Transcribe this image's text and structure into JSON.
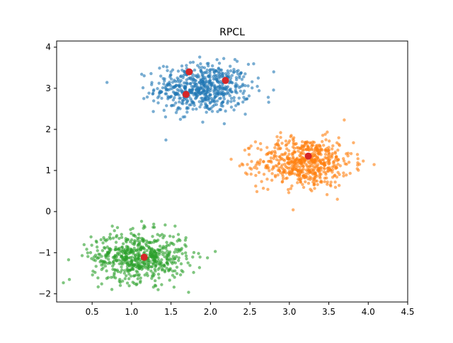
{
  "chart_data": {
    "type": "scatter",
    "title": "RPCL",
    "xlabel": "",
    "ylabel": "",
    "xlim": [
      0.05,
      4.5
    ],
    "ylim": [
      -2.2,
      4.15
    ],
    "xticks": [
      0.5,
      1.0,
      1.5,
      2.0,
      2.5,
      3.0,
      3.5,
      4.0,
      4.5
    ],
    "xtick_labels": [
      "0.5",
      "1.0",
      "1.5",
      "2.0",
      "2.5",
      "3.0",
      "3.5",
      "4.0",
      "4.5"
    ],
    "yticks": [
      -2,
      -1,
      0,
      1,
      2,
      3,
      4
    ],
    "yticks_labels": [
      "−2",
      "−1",
      "0",
      "1",
      "2",
      "3",
      "4"
    ],
    "grid": false,
    "legend": "none",
    "series": [
      {
        "color": "#1f77b4",
        "opacity": 0.6,
        "clusters": [
          {
            "center_x": 1.9,
            "center_y": 3.0,
            "sd_x": 0.3,
            "sd_y": 0.3,
            "count": 600
          }
        ]
      },
      {
        "color": "#ff7f0e",
        "opacity": 0.6,
        "clusters": [
          {
            "center_x": 3.2,
            "center_y": 1.2,
            "sd_x": 0.3,
            "sd_y": 0.3,
            "count": 600
          }
        ]
      },
      {
        "color": "#2ca02c",
        "opacity": 0.6,
        "clusters": [
          {
            "center_x": 1.1,
            "center_y": -1.1,
            "sd_x": 0.3,
            "sd_y": 0.3,
            "count": 600
          }
        ]
      }
    ],
    "centers": {
      "color": "#d62728",
      "points": [
        {
          "x": 1.73,
          "y": 3.4
        },
        {
          "x": 1.69,
          "y": 2.85
        },
        {
          "x": 2.19,
          "y": 3.19
        },
        {
          "x": 3.24,
          "y": 1.35
        },
        {
          "x": 1.16,
          "y": -1.11
        }
      ]
    }
  }
}
